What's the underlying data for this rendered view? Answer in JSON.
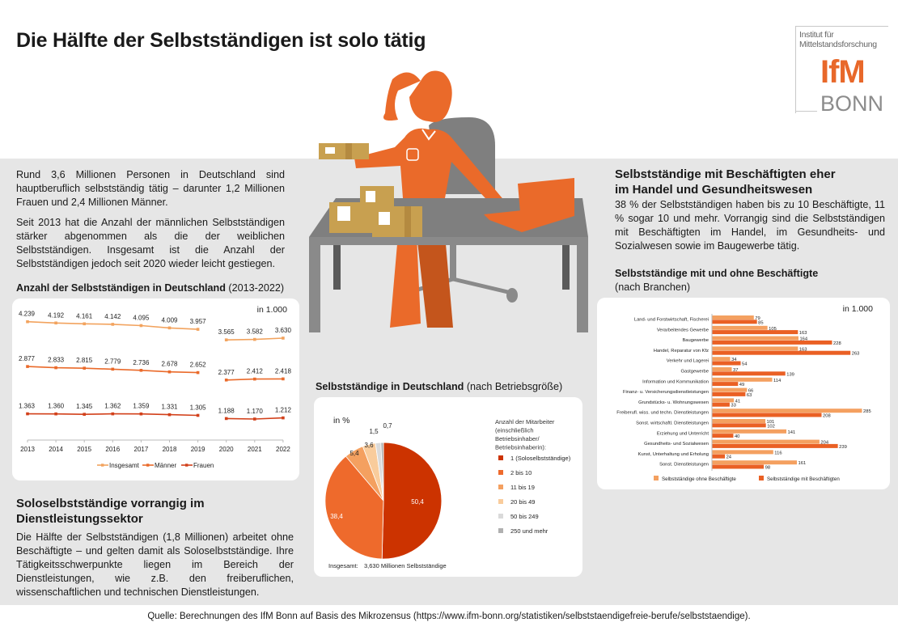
{
  "header": {
    "title": "Die Hälfte der Selbstständigen ist solo tätig",
    "logo": {
      "institute_line1": "Institut für",
      "institute_line2": "Mittelstandsforschung",
      "brand": "IfM",
      "city": "BONN"
    }
  },
  "intro": {
    "paragraph1": "Rund 3,6 Millionen Personen in Deutschland sind hauptberuflich selbstständig tätig – darunter 1,2 Millionen Frauen und 2,4 Millionen Männer.",
    "paragraph2": "Seit 2013 hat die Anzahl der männlichen Selbstständigen stärker abgenommen als die der weiblichen Selbstständigen. Insgesamt ist die Anzahl der Selbstständigen jedoch seit 2020 wieder leicht gestiegen."
  },
  "line_section": {
    "title_bold": "Anzahl der Selbstständigen in Deutschland",
    "title_normal": " (2013-2022)",
    "unit": "in 1.000"
  },
  "solo_section": {
    "title_line1": "Soloselbstständige vorrangig im",
    "title_line2": "Dienstleistungssektor",
    "text": "Die Hälfte der Selbstständigen (1,8 Millionen) arbeitet ohne Beschäftigte – und gelten damit als Soloselbstständige. Ihre Tätigkeitsschwerpunkte liegen im Bereich der Dienstleistungen, wie z.B. den freiberuflichen, wissenschaftlichen und technischen Dienstleistungen."
  },
  "pie_section": {
    "title_bold": "Selbstständige in Deutschland",
    "title_normal": " (nach Betriebsgröße)",
    "unit": "in %",
    "legend_title_lines": [
      "Anzahl der Mitarbeiter",
      "(einschließlich",
      "Betriebsinhaber/",
      "Betriebsinhaberin):"
    ],
    "total_label": "Insgesamt:",
    "total_value": "3,630 Millionen Selbstständige"
  },
  "right_section": {
    "title_line1": "Selbstständige mit Beschäftigten eher",
    "title_line2": "im Handel und Gesundheitswesen",
    "text": "38 % der Selbstständigen haben bis zu 10 Beschäftigte, 11 % sogar 10 und mehr. Vorrangig sind die Selbstständigen mit Beschäftigten im Handel, im Gesundheits- und Sozialwesen sowie im Baugewerbe tätig.",
    "chart_title_bold": "Selbstständige mit und ohne Beschäftigte",
    "chart_subtitle": "(nach Branchen)",
    "unit": "in 1.000"
  },
  "footer": {
    "source": "Quelle: Berechnungen des IfM Bonn auf Basis des Mikrozensus (https://www.ifm-bonn.org/statistiken/selbststaendigefreie-berufe/selbststaendige)."
  },
  "colors": {
    "accent": "#e8682a",
    "insgesamt": "#f2a35e",
    "maenner": "#ea6a2a",
    "frauen": "#d2401a",
    "band": "#e6e6e6"
  },
  "chart_data": [
    {
      "type": "line",
      "title": "Anzahl der Selbstständigen in Deutschland (2013-2022)",
      "ylabel": "in 1.000",
      "x": [
        "2013",
        "2014",
        "2015",
        "2016",
        "2017",
        "2018",
        "2019",
        "2020",
        "2021",
        "2022"
      ],
      "break_after": "2019",
      "legend_position": "bottom",
      "series": [
        {
          "name": "Insgesamt",
          "color": "#f2a35e",
          "labels": [
            "4.239",
            "4.192",
            "4.161",
            "4.142",
            "4.095",
            "4.009",
            "3.957",
            "3.565",
            "3.582",
            "3.630"
          ],
          "values": [
            4239,
            4192,
            4161,
            4142,
            4095,
            4009,
            3957,
            3565,
            3582,
            3630
          ]
        },
        {
          "name": "Männer",
          "color": "#ea6a2a",
          "labels": [
            "2.877",
            "2.833",
            "2.815",
            "2.779",
            "2.736",
            "2.678",
            "2.652",
            "2.377",
            "2.412",
            "2.418"
          ],
          "values": [
            2877,
            2833,
            2815,
            2779,
            2736,
            2678,
            2652,
            2377,
            2412,
            2418
          ]
        },
        {
          "name": "Frauen",
          "color": "#d2401a",
          "labels": [
            "1.363",
            "1.360",
            "1.345",
            "1.362",
            "1.359",
            "1.331",
            "1.305",
            "1.188",
            "1.170",
            "1.212"
          ],
          "values": [
            1363,
            1360,
            1345,
            1362,
            1359,
            1331,
            1305,
            1188,
            1170,
            1212
          ]
        }
      ]
    },
    {
      "type": "pie",
      "title": "Selbstständige in Deutschland (nach Betriebsgröße)",
      "unit": "in %",
      "legend_position": "right",
      "slices": [
        {
          "label": "1 (Soloselbstständige)",
          "value": 50.4,
          "display": "50,4",
          "color": "#cc3300"
        },
        {
          "label": "2 bis 10",
          "value": 38.4,
          "display": "38,4",
          "color": "#ee6a2c"
        },
        {
          "label": "11 bis 19",
          "value": 5.4,
          "display": "5,4",
          "color": "#f4a060"
        },
        {
          "label": "20 bis 49",
          "value": 3.6,
          "display": "3,6",
          "color": "#f9cc9c"
        },
        {
          "label": "50 bis 249",
          "value": 1.5,
          "display": "1,5",
          "color": "#dadada"
        },
        {
          "label": "250 und mehr",
          "value": 0.7,
          "display": "0,7",
          "color": "#b0b0b0"
        }
      ]
    },
    {
      "type": "bar",
      "orientation": "horizontal",
      "title": "Selbstständige mit und ohne Beschäftigte (nach Branchen)",
      "unit": "in 1.000",
      "legend_position": "bottom",
      "categories": [
        "Land- und Forstwirtschaft, Fischerei",
        "Verarbeitendes Gewerbe",
        "Baugewerbe",
        "Handel, Reparatur von Kfz",
        "Verkehr und Lagerei",
        "Gastgewerbe",
        "Information und Kommunikation",
        "Finanz- u. Versicherungsdienstleistungen",
        "Grundstücks- u. Wohnungswesen",
        "Freiberufl. wiss. und techn. Dienstleistungen",
        "Sonst. wirtschaftl. Dienstleistungen",
        "Erziehung und Unterricht",
        "Gesundheits- und Sozialwesen",
        "Kunst, Unterhaltung und Erholung",
        "Sonst. Dienstleistungen"
      ],
      "series": [
        {
          "name": "Selbstständige ohne Beschäftigte",
          "color": "#f4a060",
          "values": [
            79,
            105,
            164,
            163,
            34,
            37,
            114,
            66,
            41,
            285,
            101,
            141,
            204,
            116,
            161
          ]
        },
        {
          "name": "Selbstständige mit Beschäftigten",
          "color": "#ea6024",
          "values": [
            85,
            163,
            228,
            263,
            54,
            139,
            49,
            63,
            33,
            208,
            102,
            40,
            239,
            24,
            98
          ]
        }
      ]
    }
  ]
}
